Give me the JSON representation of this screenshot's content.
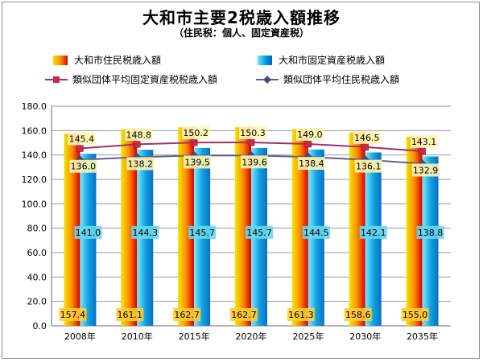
{
  "title": "大和市主要2税歳入額推移",
  "subtitle": "（住民税：個人、固定資産税）",
  "legend": {
    "resident_bar": "大和市住民税歳入額",
    "fixed_bar": "大和市固定資産税歳入額",
    "similar_fixed_line": "類似団体平均固定資産税税歳入額",
    "similar_resident_line": "類似団体平均住民税歳入額"
  },
  "colors": {
    "resident_bar": "#ff7a00",
    "fixed_bar": "#1aaee6",
    "similar_fixed_line": "#a0306a",
    "similar_resident_line": "#60608e",
    "grid": "#9a9a9a"
  },
  "chart_data": {
    "type": "bar",
    "categories": [
      "2008年",
      "2010年",
      "2015年",
      "2020年",
      "2025年",
      "2030年",
      "2035年"
    ],
    "series": [
      {
        "name": "大和市住民税歳入額",
        "kind": "bar",
        "values": [
          157.4,
          161.1,
          162.7,
          162.7,
          161.3,
          158.6,
          155.0
        ]
      },
      {
        "name": "大和市固定資産税歳入額",
        "kind": "bar",
        "values": [
          141.0,
          144.3,
          145.7,
          145.7,
          144.5,
          142.1,
          138.8
        ]
      },
      {
        "name": "類似団体平均固定資産税税歳入額",
        "kind": "line",
        "values": [
          145.4,
          148.8,
          150.2,
          150.3,
          149.0,
          146.5,
          143.1
        ]
      },
      {
        "name": "類似団体平均住民税歳入額",
        "kind": "line",
        "values": [
          136.0,
          138.2,
          139.5,
          139.6,
          138.4,
          136.1,
          132.9
        ]
      }
    ],
    "ylim": [
      0,
      180
    ],
    "yticks": [
      "0.0",
      "20.0",
      "40.0",
      "60.0",
      "80.0",
      "100.0",
      "120.0",
      "140.0",
      "160.0",
      "180.0"
    ],
    "grid": true,
    "legend_position": "top"
  }
}
